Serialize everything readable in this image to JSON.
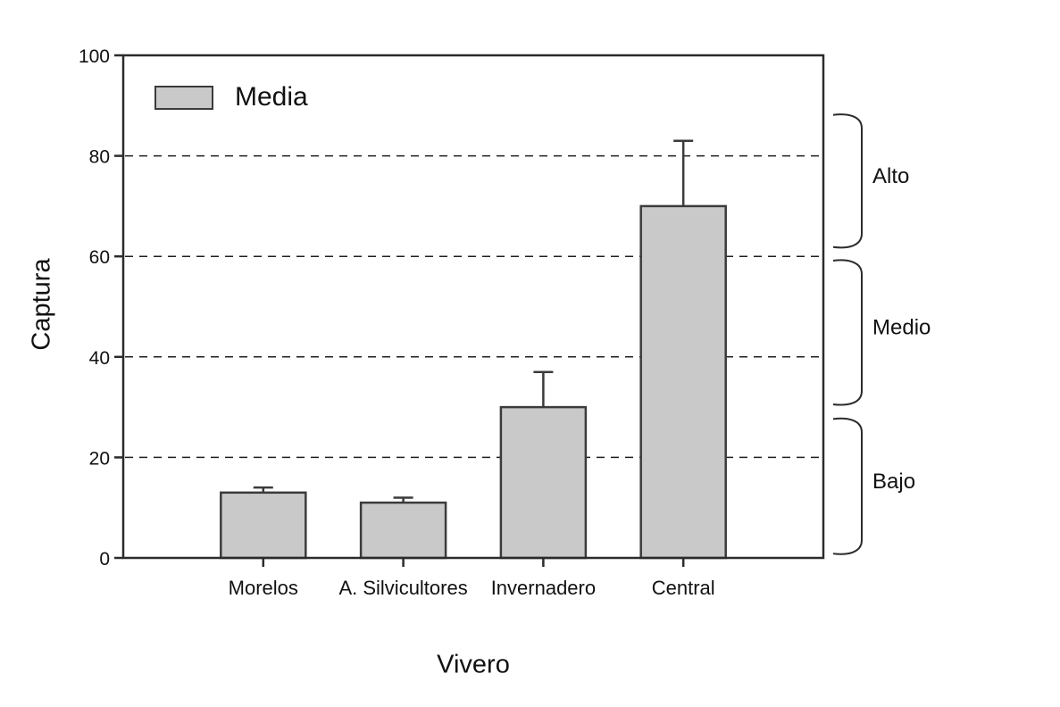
{
  "chart_data": {
    "type": "bar",
    "title": "",
    "ylabel": "Captura",
    "xlabel": "Vivero",
    "categories": [
      "Morelos",
      "A. Silvicultores",
      "Invernadero",
      "Central"
    ],
    "series": [
      {
        "name": "Media",
        "values": [
          13,
          11,
          30,
          70
        ]
      }
    ],
    "error_upper": [
      14,
      12,
      37,
      83
    ],
    "ylim": [
      0,
      100
    ],
    "yticks": [
      0,
      20,
      40,
      60,
      80,
      100
    ],
    "gridlines": [
      20,
      40,
      60,
      80
    ],
    "grid_style": "dashed",
    "legend": {
      "label": "Media",
      "position": "top-left",
      "swatch_color": "#c9c9c9"
    },
    "annotations": [
      {
        "label": "Alto",
        "value_range": [
          61.5,
          88.5
        ]
      },
      {
        "label": "Medio",
        "value_range": [
          30.2,
          59.5
        ]
      },
      {
        "label": "Bajo",
        "value_range": [
          0.5,
          28.0
        ]
      }
    ],
    "colors": {
      "bar_fill": "#c9c9c9",
      "bar_border": "#3b3b3b",
      "axis": "#2b2b2b",
      "grid": "#1f1f1f",
      "text": "#111111"
    }
  }
}
